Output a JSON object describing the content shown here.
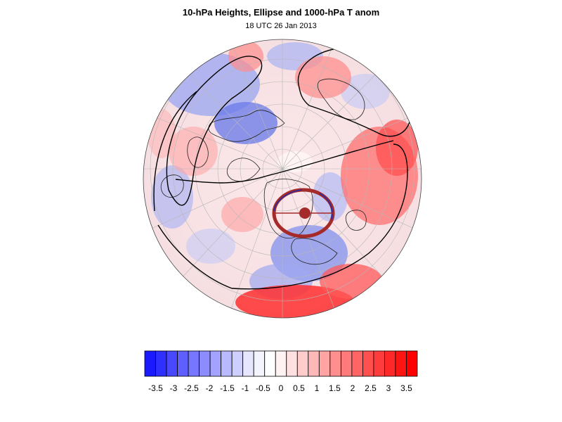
{
  "figure": {
    "title": "10-hPa Heights, Ellipse and 1000-hPa T anom",
    "subtitle": "18 UTC 26 Jan 2013"
  },
  "colorbar": {
    "labels": [
      "-3.5",
      "-3",
      "-2.5",
      "-2",
      "-1.5",
      "-1",
      "-0.5",
      "0",
      "0.5",
      "1",
      "1.5",
      "2",
      "2.5",
      "3",
      "3.5"
    ],
    "colors": [
      "#1a1aff",
      "#2f2fff",
      "#4848ff",
      "#5f5fff",
      "#7676ff",
      "#8c8cff",
      "#a3a3ff",
      "#b9b9ff",
      "#cfcfff",
      "#e6e6ff",
      "#f4f4ff",
      "#ffffff",
      "#fff2f2",
      "#ffe0e0",
      "#ffcccc",
      "#ffb8b8",
      "#ffa3a3",
      "#ff8e8e",
      "#ff7a7a",
      "#ff6565",
      "#ff5050",
      "#ff3c3c",
      "#ff2828",
      "#ff1414",
      "#ff0000"
    ]
  },
  "map": {
    "projection": "orthographic polar (north pole)",
    "ellipse_color": "#a52a2a",
    "contour_color": "#000000"
  }
}
